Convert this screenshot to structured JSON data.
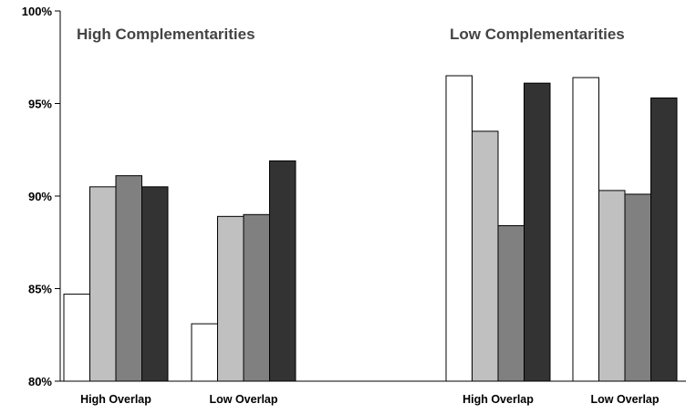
{
  "chart_data": {
    "type": "bar",
    "ylim": [
      0.8,
      1.0
    ],
    "yticks": [
      0.8,
      0.85,
      0.9,
      0.95,
      1.0
    ],
    "ytick_labels": [
      "80%",
      "85%",
      "90%",
      "95%",
      "100%"
    ],
    "grid": false,
    "legend": "none",
    "series_colors": [
      "#ffffff",
      "#c0c0c0",
      "#808080",
      "#333333"
    ],
    "panels": [
      {
        "title": "High Complementarities",
        "groups": [
          {
            "label": "High Overlap",
            "values": [
              0.847,
              0.905,
              0.911,
              0.905
            ]
          },
          {
            "label": "Low Overlap",
            "values": [
              0.831,
              0.889,
              0.89,
              0.919
            ]
          }
        ]
      },
      {
        "title": "Low Complementarities",
        "groups": [
          {
            "label": "High Overlap",
            "values": [
              0.965,
              0.935,
              0.884,
              0.961
            ]
          },
          {
            "label": "Low Overlap",
            "values": [
              0.964,
              0.903,
              0.901,
              0.953
            ]
          }
        ]
      }
    ]
  }
}
